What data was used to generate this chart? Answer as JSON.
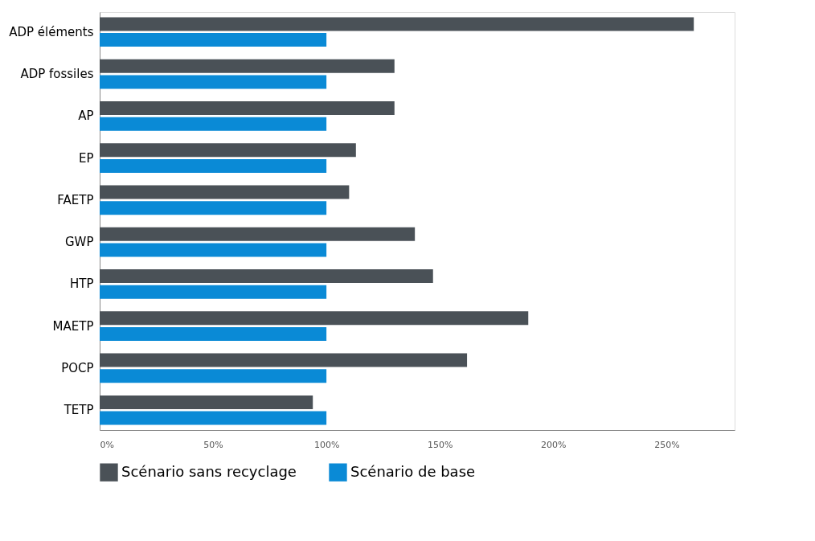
{
  "chart_data": {
    "type": "bar",
    "orientation": "horizontal",
    "categories": [
      "ADP éléments",
      "ADP fossiles",
      "AP",
      "EP",
      "FAETP",
      "GWP",
      "HTP",
      "MAETP",
      "POCP",
      "TETP"
    ],
    "series": [
      {
        "name": "Scénario sans recyclage",
        "color": "#4a5157",
        "values": [
          262,
          130,
          130,
          113,
          110,
          139,
          147,
          189,
          162,
          94
        ]
      },
      {
        "name": "Scénario de base",
        "color": "#0a8ad6",
        "values": [
          100,
          100,
          100,
          100,
          100,
          100,
          100,
          100,
          100,
          100
        ]
      }
    ],
    "xlim": [
      0,
      280
    ],
    "xticks": [
      {
        "value": 0,
        "label": "0%"
      },
      {
        "value": 50,
        "label": "50%"
      },
      {
        "value": 100,
        "label": "100%"
      },
      {
        "value": 150,
        "label": "150%"
      },
      {
        "value": 200,
        "label": "200%"
      },
      {
        "value": 250,
        "label": "250%"
      }
    ],
    "grid": false,
    "legend": "bottom"
  }
}
